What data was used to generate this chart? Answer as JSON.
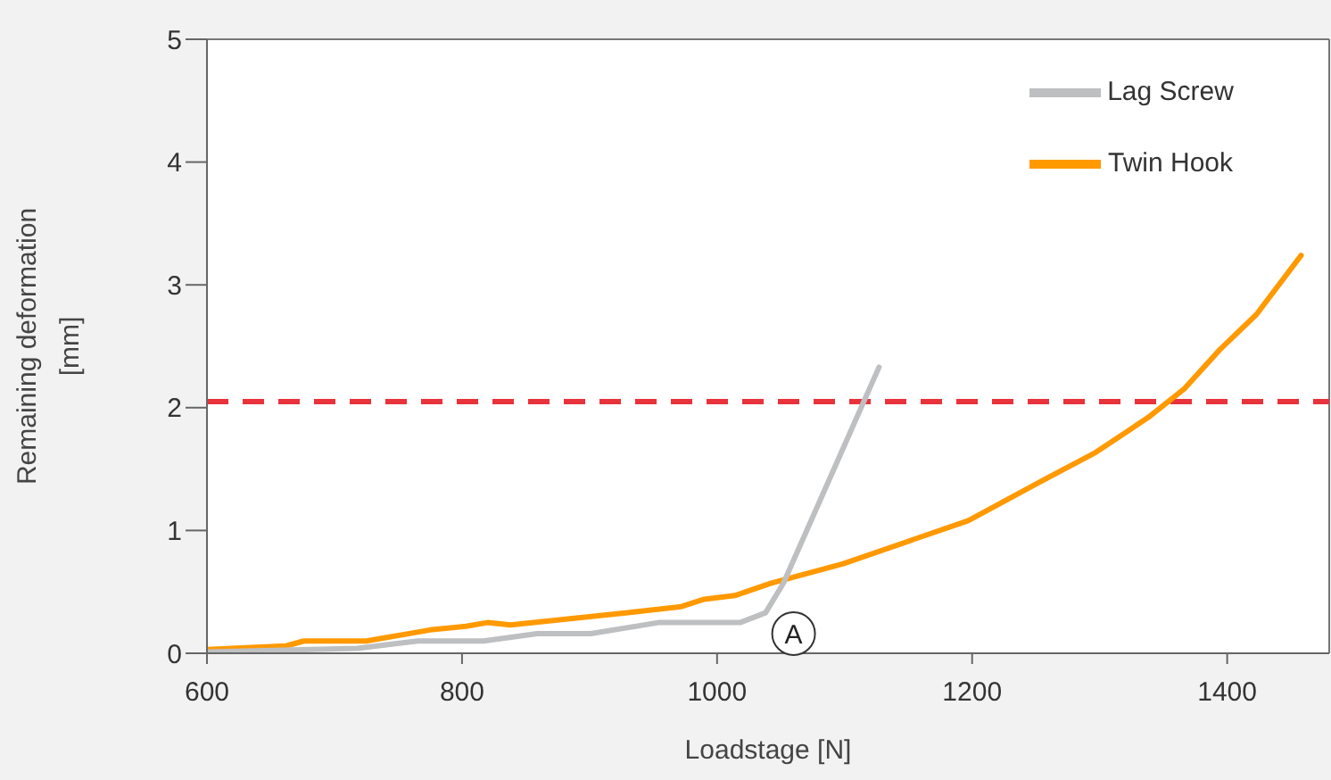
{
  "chart_data": {
    "type": "line",
    "xlabel": "Loadstage [N]",
    "ylabel": "Remaining deformation [mm]",
    "xlim": [
      600,
      1480
    ],
    "xticks": [
      600,
      800,
      1000,
      1200,
      1400
    ],
    "ylim": [
      0,
      5
    ],
    "yticks": [
      0,
      1,
      2,
      3,
      4,
      5
    ],
    "series": [
      {
        "name": "Twin Hook",
        "color": "#ff9900",
        "x": [
          600,
          662,
          676,
          725,
          775,
          803,
          820,
          838,
          930,
          972,
          990,
          1014,
          1042,
          1099,
          1155,
          1197,
          1254,
          1296,
          1338,
          1366,
          1394,
          1423,
          1458
        ],
        "values": [
          0.03,
          0.06,
          0.1,
          0.1,
          0.19,
          0.22,
          0.25,
          0.23,
          0.33,
          0.38,
          0.44,
          0.47,
          0.57,
          0.73,
          0.93,
          1.08,
          1.4,
          1.63,
          1.92,
          2.15,
          2.47,
          2.76,
          3.24
        ]
      },
      {
        "name": "Lag Screw",
        "color": "#bdbfc1",
        "x": [
          601,
          718,
          765,
          817,
          859,
          901,
          954,
          1018,
          1038,
          1052,
          1127
        ],
        "values": [
          0.01,
          0.04,
          0.1,
          0.1,
          0.16,
          0.16,
          0.25,
          0.25,
          0.33,
          0.57,
          2.33
        ]
      }
    ],
    "ref_lines": [
      {
        "axis": "y",
        "value": 2.05,
        "color": "#e8323c",
        "line_style": "dashed"
      }
    ],
    "annotations": [
      {
        "text": "A",
        "x": 1060,
        "y": 0.16
      }
    ],
    "legend": "top right",
    "grid": false,
    "marker": "none",
    "line_style": "solid"
  }
}
